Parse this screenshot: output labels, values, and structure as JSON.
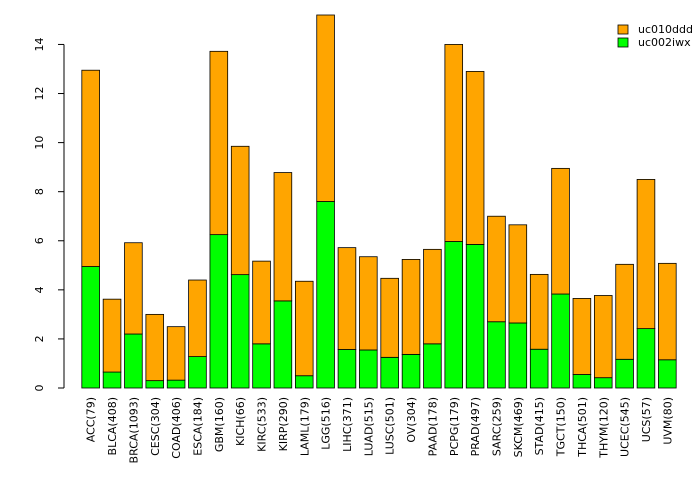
{
  "chart_data": {
    "type": "bar",
    "stacked": true,
    "categories": [
      "ACC(79)",
      "BLCA(408)",
      "BRCA(1093)",
      "CESC(304)",
      "COAD(406)",
      "ESCA(184)",
      "GBM(160)",
      "KICH(66)",
      "KIRC(533)",
      "KIRP(290)",
      "LAML(179)",
      "LGG(516)",
      "LIHC(371)",
      "LUAD(515)",
      "LUSC(501)",
      "OV(304)",
      "PAAD(178)",
      "PCPG(179)",
      "PRAD(497)",
      "SARC(259)",
      "SKCM(469)",
      "STAD(415)",
      "TGCT(150)",
      "THCA(501)",
      "THYM(120)",
      "UCEC(545)",
      "UCS(57)",
      "UVM(80)"
    ],
    "series": [
      {
        "name": "uc002iwx",
        "color": "#00ff00",
        "values": [
          4.95,
          0.65,
          2.2,
          0.3,
          0.32,
          1.28,
          6.25,
          4.62,
          1.8,
          3.55,
          0.5,
          7.6,
          1.57,
          1.55,
          1.25,
          1.37,
          1.8,
          5.97,
          5.85,
          2.7,
          2.65,
          1.58,
          3.83,
          0.55,
          0.42,
          1.17,
          2.42,
          1.15
        ]
      },
      {
        "name": "uc010ddd",
        "color": "#ffa500",
        "values": [
          8.0,
          2.97,
          3.72,
          2.7,
          2.18,
          3.12,
          7.47,
          5.23,
          3.37,
          5.23,
          3.85,
          7.6,
          4.15,
          3.8,
          3.22,
          3.87,
          3.85,
          8.03,
          7.05,
          4.3,
          4.0,
          3.05,
          5.12,
          3.1,
          3.35,
          3.87,
          6.08,
          3.93
        ]
      }
    ],
    "ylim": [
      0,
      15.2
    ],
    "yticks": [
      0,
      2,
      4,
      6,
      8,
      10,
      12,
      14
    ],
    "legend_position": "top-right",
    "xlabel": "",
    "ylabel": "",
    "title": ""
  }
}
